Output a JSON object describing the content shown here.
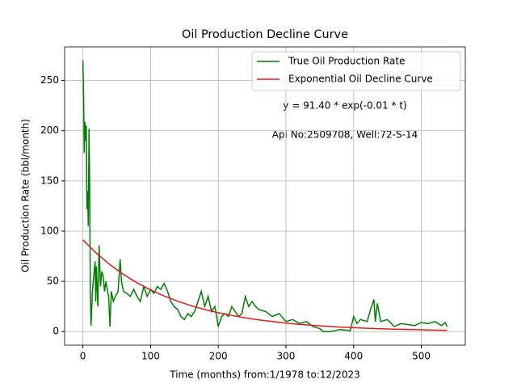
{
  "chart_data": {
    "type": "line",
    "title": "Oil Production Decline Curve",
    "xlabel": "Time (months) from:1/1978 to:12/2023",
    "ylabel": "Oil Production Rate (bbl/month)",
    "annotations": [
      "y = 91.40 * exp(-0.01 * t)",
      "Api No:2509708, Well:72-S-14"
    ],
    "xlim": [
      -27,
      565
    ],
    "ylim": [
      -13.5,
      283.5
    ],
    "xticks": [
      0,
      100,
      200,
      300,
      400,
      500
    ],
    "yticks": [
      0,
      50,
      100,
      150,
      200,
      250
    ],
    "grid": true,
    "legend": "upper right",
    "series": [
      {
        "name": "True Oil Production Rate",
        "color": "#008000",
        "x": [
          0,
          1,
          2,
          3,
          4,
          5,
          6,
          7,
          8,
          9,
          10,
          11,
          12,
          14,
          16,
          18,
          19,
          20,
          22,
          24,
          26,
          28,
          30,
          32,
          34,
          36,
          38,
          40,
          42,
          45,
          48,
          52,
          55,
          57,
          60,
          65,
          70,
          75,
          80,
          85,
          90,
          95,
          100,
          105,
          110,
          115,
          120,
          125,
          130,
          135,
          140,
          145,
          150,
          155,
          160,
          165,
          170,
          175,
          180,
          185,
          190,
          195,
          200,
          205,
          210,
          215,
          220,
          225,
          230,
          235,
          240,
          245,
          250,
          255,
          260,
          270,
          280,
          290,
          300,
          310,
          320,
          330,
          340,
          350,
          355,
          365,
          380,
          395,
          400,
          405,
          410,
          420,
          425,
          430,
          432,
          435,
          440,
          450,
          460,
          470,
          480,
          490,
          500,
          510,
          520,
          530,
          535,
          538
        ],
        "values": [
          270,
          235,
          178,
          209,
          190,
          205,
          122,
          140,
          105,
          202,
          150,
          40,
          6,
          40,
          55,
          70,
          30,
          65,
          25,
          86,
          45,
          60,
          55,
          40,
          50,
          42,
          35,
          5,
          40,
          30,
          35,
          40,
          72,
          50,
          40,
          38,
          35,
          42,
          35,
          30,
          45,
          35,
          42,
          38,
          45,
          42,
          48,
          40,
          30,
          25,
          22,
          15,
          12,
          18,
          15,
          20,
          30,
          40,
          25,
          35,
          20,
          25,
          5,
          15,
          18,
          15,
          25,
          20,
          15,
          18,
          35,
          25,
          30,
          25,
          22,
          20,
          15,
          18,
          10,
          12,
          8,
          10,
          5,
          3,
          0,
          0,
          2,
          1,
          15,
          8,
          12,
          10,
          22,
          32,
          10,
          28,
          10,
          12,
          5,
          8,
          7,
          6,
          9,
          8,
          10,
          6,
          9,
          5
        ]
      },
      {
        "name": "Exponential Oil Decline Curve",
        "color": "#e41a1c",
        "x": [
          0,
          20,
          40,
          60,
          80,
          100,
          120,
          140,
          160,
          180,
          200,
          220,
          240,
          260,
          280,
          300,
          320,
          340,
          360,
          380,
          400,
          420,
          440,
          460,
          480,
          500,
          520,
          538
        ],
        "values": [
          91.4,
          78.0,
          66.7,
          56.9,
          48.6,
          41.5,
          35.4,
          30.3,
          25.8,
          22.0,
          18.8,
          16.1,
          13.7,
          11.7,
          10.0,
          8.5,
          7.3,
          6.2,
          5.3,
          4.5,
          3.9,
          3.3,
          2.8,
          2.4,
          2.1,
          1.8,
          1.5,
          1.3
        ]
      }
    ]
  }
}
